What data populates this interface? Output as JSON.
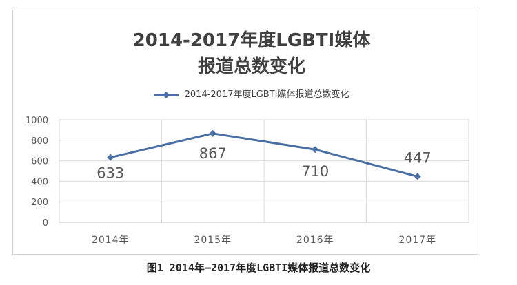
{
  "chart_data": {
    "type": "line",
    "title_lines": [
      "2014-2017年度LGBTI媒体",
      "报道总数变化"
    ],
    "legend_position": "top",
    "grid": true,
    "categories": [
      "2014年",
      "2015年",
      "2016年",
      "2017年"
    ],
    "series": [
      {
        "name": "2014-2017年度LGBTI媒体报道总数变化",
        "values": [
          633,
          867,
          710,
          447
        ],
        "data_labels": [
          "633",
          "867",
          "710",
          "447"
        ]
      }
    ],
    "ylim": [
      0,
      1000
    ],
    "yticks": [
      {
        "value": 0,
        "label": "0"
      },
      {
        "value": 200,
        "label": "200"
      },
      {
        "value": 400,
        "label": "400"
      },
      {
        "value": 600,
        "label": "600"
      },
      {
        "value": 800,
        "label": "800"
      },
      {
        "value": 1000,
        "label": "1000"
      }
    ],
    "line_color": "#4a6fa5",
    "grid_color": "#d9d9d9",
    "text_color": "#595959"
  },
  "caption": "图1 2014年—2017年度LGBTI媒体报道总数变化"
}
